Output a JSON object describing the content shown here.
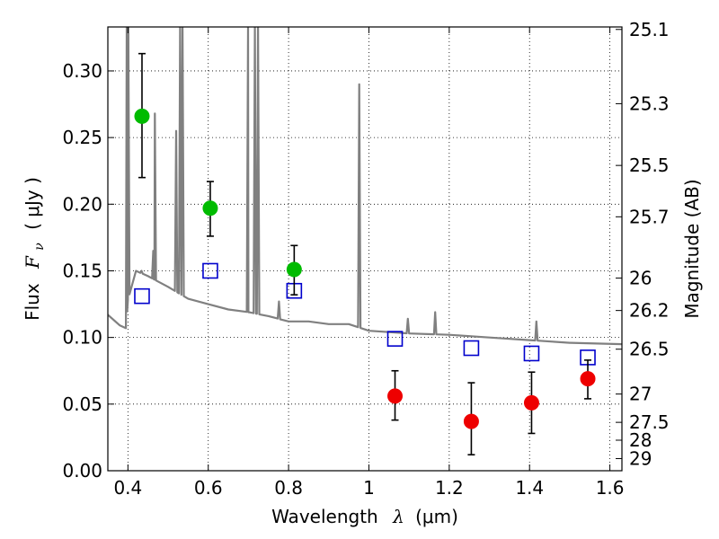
{
  "chart_data": {
    "type": "scatter",
    "xlabel_prefix": "Wavelength",
    "xlabel_symbol": "λ",
    "xlabel_unit": "(μm)",
    "ylabel_prefix": "Flux",
    "ylabel_symbol": "F",
    "ylabel_subscript": "ν",
    "ylabel_unit": "( μJy )",
    "y2label": "Magnitude (AB)",
    "xlim": [
      0.35,
      1.63
    ],
    "ylim": [
      0.0,
      0.333
    ],
    "grid": true,
    "x_ticks": [
      0.4,
      0.6,
      0.8,
      1.0,
      1.2,
      1.4,
      1.6
    ],
    "x_tick_labels": [
      "0.4",
      "0.6",
      "0.8",
      "1",
      "1.2",
      "1.4",
      "1.6"
    ],
    "y_ticks": [
      0.0,
      0.05,
      0.1,
      0.15,
      0.2,
      0.25,
      0.3
    ],
    "y_tick_labels": [
      "0.00",
      "0.05",
      "0.10",
      "0.15",
      "0.20",
      "0.25",
      "0.30"
    ],
    "y2_ticks": [
      25.1,
      25.3,
      25.5,
      25.7,
      26,
      26.2,
      26.5,
      27,
      27.5,
      28,
      29
    ],
    "y2_tick_labels": [
      "25.1",
      "25.3",
      "25.5",
      "25.7",
      "26",
      "26.2",
      "26.5",
      "27",
      "27.5",
      "28",
      "29"
    ],
    "series": [
      {
        "kind": "detections",
        "color": "#00bb00",
        "points": [
          {
            "x": 0.435,
            "y": 0.266,
            "err_low": 0.046,
            "err_high": 0.047
          },
          {
            "x": 0.605,
            "y": 0.197,
            "err_low": 0.021,
            "err_high": 0.02
          },
          {
            "x": 0.814,
            "y": 0.151,
            "err_low": 0.019,
            "err_high": 0.018
          }
        ]
      },
      {
        "kind": "detections",
        "color": "#ee0000",
        "points": [
          {
            "x": 1.065,
            "y": 0.056,
            "err_low": 0.018,
            "err_high": 0.019
          },
          {
            "x": 1.255,
            "y": 0.037,
            "err_low": 0.025,
            "err_high": 0.029
          },
          {
            "x": 1.405,
            "y": 0.051,
            "err_low": 0.023,
            "err_high": 0.023
          },
          {
            "x": 1.545,
            "y": 0.069,
            "err_low": 0.015,
            "err_high": 0.014
          }
        ]
      },
      {
        "kind": "model-photometry",
        "color": "#0000cc",
        "points": [
          {
            "x": 0.435,
            "y": 0.131
          },
          {
            "x": 0.605,
            "y": 0.15
          },
          {
            "x": 0.814,
            "y": 0.135
          },
          {
            "x": 1.065,
            "y": 0.099
          },
          {
            "x": 1.255,
            "y": 0.092
          },
          {
            "x": 1.405,
            "y": 0.088
          },
          {
            "x": 1.545,
            "y": 0.085
          }
        ]
      },
      {
        "kind": "template-spectrum",
        "color": "#808080",
        "continuum": [
          [
            0.35,
            0.117
          ],
          [
            0.38,
            0.109
          ],
          [
            0.395,
            0.107
          ],
          [
            0.4,
            0.128
          ],
          [
            0.42,
            0.15
          ],
          [
            0.45,
            0.146
          ],
          [
            0.5,
            0.138
          ],
          [
            0.55,
            0.129
          ],
          [
            0.6,
            0.125
          ],
          [
            0.65,
            0.121
          ],
          [
            0.7,
            0.119
          ],
          [
            0.75,
            0.116
          ],
          [
            0.8,
            0.112
          ],
          [
            0.85,
            0.112
          ],
          [
            0.9,
            0.11
          ],
          [
            0.95,
            0.11
          ],
          [
            1.0,
            0.105
          ],
          [
            1.1,
            0.103
          ],
          [
            1.2,
            0.102
          ],
          [
            1.3,
            0.1
          ],
          [
            1.4,
            0.098
          ],
          [
            1.5,
            0.096
          ],
          [
            1.63,
            0.095
          ]
        ],
        "lines": [
          {
            "x": 0.397,
            "peak": 0.333
          },
          {
            "x": 0.401,
            "peak": 0.333
          },
          {
            "x": 0.434,
            "peak": 0.15
          },
          {
            "x": 0.463,
            "peak": 0.165
          },
          {
            "x": 0.467,
            "peak": 0.268
          },
          {
            "x": 0.52,
            "peak": 0.255
          },
          {
            "x": 0.53,
            "peak": 0.333
          },
          {
            "x": 0.536,
            "peak": 0.333
          },
          {
            "x": 0.699,
            "peak": 0.333
          },
          {
            "x": 0.716,
            "peak": 0.333
          },
          {
            "x": 0.724,
            "peak": 0.333
          },
          {
            "x": 0.776,
            "peak": 0.127
          },
          {
            "x": 0.976,
            "peak": 0.29
          },
          {
            "x": 1.097,
            "peak": 0.114
          },
          {
            "x": 1.165,
            "peak": 0.119
          },
          {
            "x": 1.417,
            "peak": 0.112
          }
        ]
      }
    ]
  }
}
